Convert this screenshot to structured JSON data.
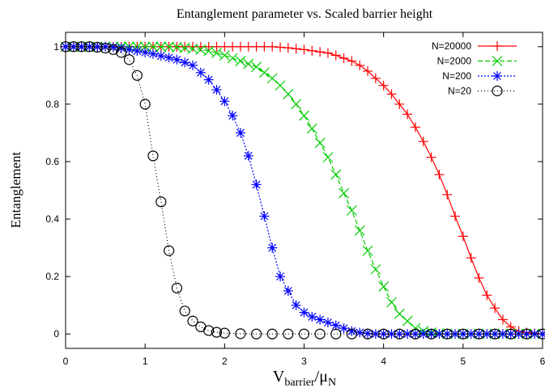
{
  "chart_data": {
    "type": "line",
    "title": "Entanglement parameter vs. Scaled barrier height",
    "xlabel_main": "V",
    "xlabel_sub1": "barrier",
    "xlabel_mid": "/μ",
    "xlabel_sub2": "N",
    "ylabel": "Entanglement",
    "xlim": [
      0,
      6
    ],
    "ylim": [
      -0.05,
      1.05
    ],
    "x_ticks": [
      0,
      1,
      2,
      3,
      4,
      5,
      6
    ],
    "y_ticks": [
      0,
      0.2,
      0.4,
      0.6,
      0.8,
      1
    ],
    "x_tick_labels": [
      "0",
      "1",
      "2",
      "3",
      "4",
      "5",
      "6"
    ],
    "y_tick_labels": [
      "0",
      "0.2",
      "0.4",
      "0.6",
      "0.8",
      "1"
    ],
    "legend_position": "top-right",
    "series": [
      {
        "name": "N=20000",
        "color": "#ff0000",
        "marker": "plus",
        "dash": "solid",
        "x": [
          0,
          0.1,
          0.2,
          0.3,
          0.4,
          0.5,
          0.6,
          0.7,
          0.8,
          0.9,
          1.0,
          1.1,
          1.2,
          1.3,
          1.4,
          1.5,
          1.6,
          1.7,
          1.8,
          1.9,
          2.0,
          2.1,
          2.2,
          2.3,
          2.4,
          2.5,
          2.6,
          2.7,
          2.8,
          2.9,
          3.0,
          3.1,
          3.2,
          3.3,
          3.4,
          3.5,
          3.6,
          3.7,
          3.8,
          3.9,
          4.0,
          4.1,
          4.2,
          4.3,
          4.4,
          4.5,
          4.6,
          4.7,
          4.8,
          4.9,
          5.0,
          5.1,
          5.2,
          5.3,
          5.4,
          5.5,
          5.6,
          5.7,
          5.8,
          5.9,
          6.0
        ],
        "y": [
          1,
          1,
          1,
          1,
          1,
          1,
          1,
          1,
          1,
          1,
          1,
          1,
          1,
          1,
          1,
          1,
          1,
          1,
          1,
          1,
          1,
          1,
          1,
          1,
          1,
          1,
          1,
          0.998,
          0.996,
          0.993,
          0.99,
          0.986,
          0.982,
          0.978,
          0.97,
          0.96,
          0.95,
          0.935,
          0.915,
          0.89,
          0.865,
          0.835,
          0.8,
          0.765,
          0.72,
          0.67,
          0.615,
          0.555,
          0.485,
          0.41,
          0.34,
          0.265,
          0.195,
          0.135,
          0.09,
          0.05,
          0.025,
          0.01,
          0.005,
          0.002,
          0
        ]
      },
      {
        "name": "N=2000",
        "color": "#00cc00",
        "marker": "cross",
        "dash": "6,3",
        "x": [
          0,
          0.1,
          0.2,
          0.3,
          0.4,
          0.5,
          0.6,
          0.7,
          0.8,
          0.9,
          1.0,
          1.1,
          1.2,
          1.3,
          1.4,
          1.5,
          1.6,
          1.7,
          1.8,
          1.9,
          2.0,
          2.1,
          2.2,
          2.3,
          2.4,
          2.5,
          2.6,
          2.7,
          2.8,
          2.9,
          3.0,
          3.1,
          3.2,
          3.3,
          3.4,
          3.5,
          3.6,
          3.7,
          3.8,
          3.9,
          4.0,
          4.1,
          4.2,
          4.3,
          4.4,
          4.5,
          4.6,
          4.7,
          4.8,
          4.9,
          5.0,
          5.1,
          5.2,
          5.3,
          5.4,
          5.5,
          5.6,
          5.7,
          5.8,
          5.9,
          6.0
        ],
        "y": [
          1,
          1,
          1,
          1,
          1,
          1,
          1,
          1,
          1,
          1,
          1,
          1,
          1,
          1,
          0.998,
          0.996,
          0.993,
          0.99,
          0.985,
          0.978,
          0.97,
          0.96,
          0.95,
          0.94,
          0.93,
          0.91,
          0.89,
          0.865,
          0.835,
          0.8,
          0.76,
          0.715,
          0.665,
          0.615,
          0.555,
          0.49,
          0.43,
          0.36,
          0.29,
          0.225,
          0.165,
          0.11,
          0.07,
          0.045,
          0.02,
          0.01,
          0.005,
          0.002,
          0,
          0,
          0,
          0,
          0,
          0,
          0,
          0,
          0,
          0,
          0,
          0,
          0
        ]
      },
      {
        "name": "N=200",
        "color": "#0000ff",
        "marker": "star",
        "dash": "2,2",
        "x": [
          0,
          0.1,
          0.2,
          0.3,
          0.4,
          0.5,
          0.6,
          0.7,
          0.8,
          0.9,
          1.0,
          1.1,
          1.2,
          1.3,
          1.4,
          1.5,
          1.6,
          1.7,
          1.8,
          1.9,
          2.0,
          2.1,
          2.2,
          2.3,
          2.4,
          2.5,
          2.6,
          2.7,
          2.8,
          2.9,
          3.0,
          3.1,
          3.2,
          3.3,
          3.4,
          3.5,
          3.6,
          3.7,
          3.8,
          3.9,
          4.0,
          4.1,
          4.2,
          4.3,
          4.4,
          4.5,
          4.6,
          4.7,
          4.8,
          4.9,
          5.0,
          5.1,
          5.2,
          5.3,
          5.4,
          5.5,
          5.6,
          5.7,
          5.8,
          5.9,
          6.0
        ],
        "y": [
          1,
          1,
          1,
          1,
          1,
          1,
          0.998,
          0.995,
          0.99,
          0.985,
          0.98,
          0.975,
          0.968,
          0.962,
          0.955,
          0.945,
          0.935,
          0.91,
          0.885,
          0.85,
          0.81,
          0.76,
          0.7,
          0.62,
          0.52,
          0.41,
          0.3,
          0.2,
          0.15,
          0.1,
          0.075,
          0.06,
          0.05,
          0.04,
          0.03,
          0.02,
          0.01,
          0.005,
          0.002,
          0,
          0,
          0,
          0,
          0,
          0,
          0,
          0,
          0,
          0,
          0,
          0,
          0,
          0,
          0,
          0,
          0,
          0,
          0,
          0,
          0,
          0
        ]
      },
      {
        "name": "N=20",
        "color": "#000000",
        "marker": "circle",
        "dash": "1,3",
        "x": [
          0,
          0.1,
          0.2,
          0.3,
          0.4,
          0.5,
          0.6,
          0.7,
          0.8,
          0.9,
          1.0,
          1.1,
          1.2,
          1.3,
          1.4,
          1.5,
          1.6,
          1.7,
          1.8,
          1.9,
          2.0,
          2.2,
          2.4,
          2.6,
          2.8,
          3.0,
          3.2,
          3.4,
          3.6,
          3.8,
          4.0,
          4.2,
          4.4,
          4.6,
          4.8,
          5.0,
          5.2,
          5.4,
          5.6,
          5.8,
          6.0
        ],
        "y": [
          1,
          1,
          1,
          1,
          0.998,
          0.995,
          0.99,
          0.98,
          0.955,
          0.9,
          0.8,
          0.62,
          0.46,
          0.29,
          0.16,
          0.08,
          0.045,
          0.025,
          0.012,
          0.006,
          0.003,
          0.001,
          0,
          0,
          0,
          0,
          0,
          0,
          0,
          0,
          0,
          0,
          0,
          0,
          0,
          0,
          0,
          0,
          0,
          0,
          0
        ]
      }
    ]
  }
}
